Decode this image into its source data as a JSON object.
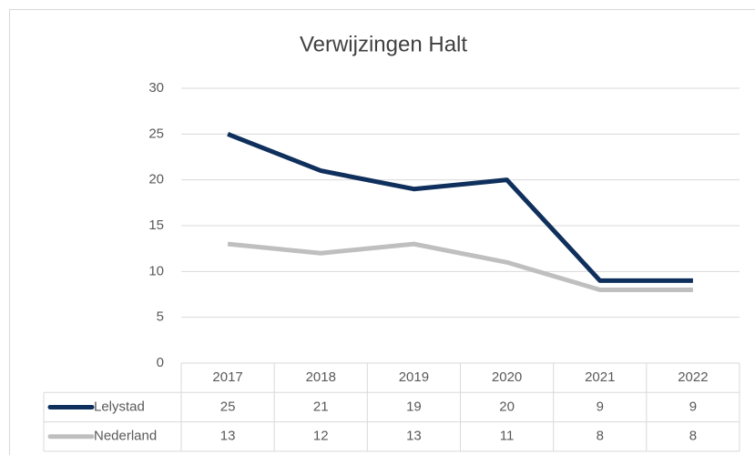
{
  "chart_data": {
    "type": "line",
    "title": "Verwijzingen Halt",
    "categories": [
      "2017",
      "2018",
      "2019",
      "2020",
      "2021",
      "2022"
    ],
    "series": [
      {
        "name": "Lelystad",
        "color": "#0f2f5c",
        "values": [
          25,
          21,
          19,
          20,
          9,
          9
        ]
      },
      {
        "name": "Nederland",
        "color": "#bfbfbf",
        "values": [
          13,
          12,
          13,
          11,
          8,
          8
        ]
      }
    ],
    "ylim": [
      0,
      30
    ],
    "yticks": [
      0,
      5,
      10,
      15,
      20,
      25,
      30
    ],
    "grid": true,
    "data_table": true
  }
}
